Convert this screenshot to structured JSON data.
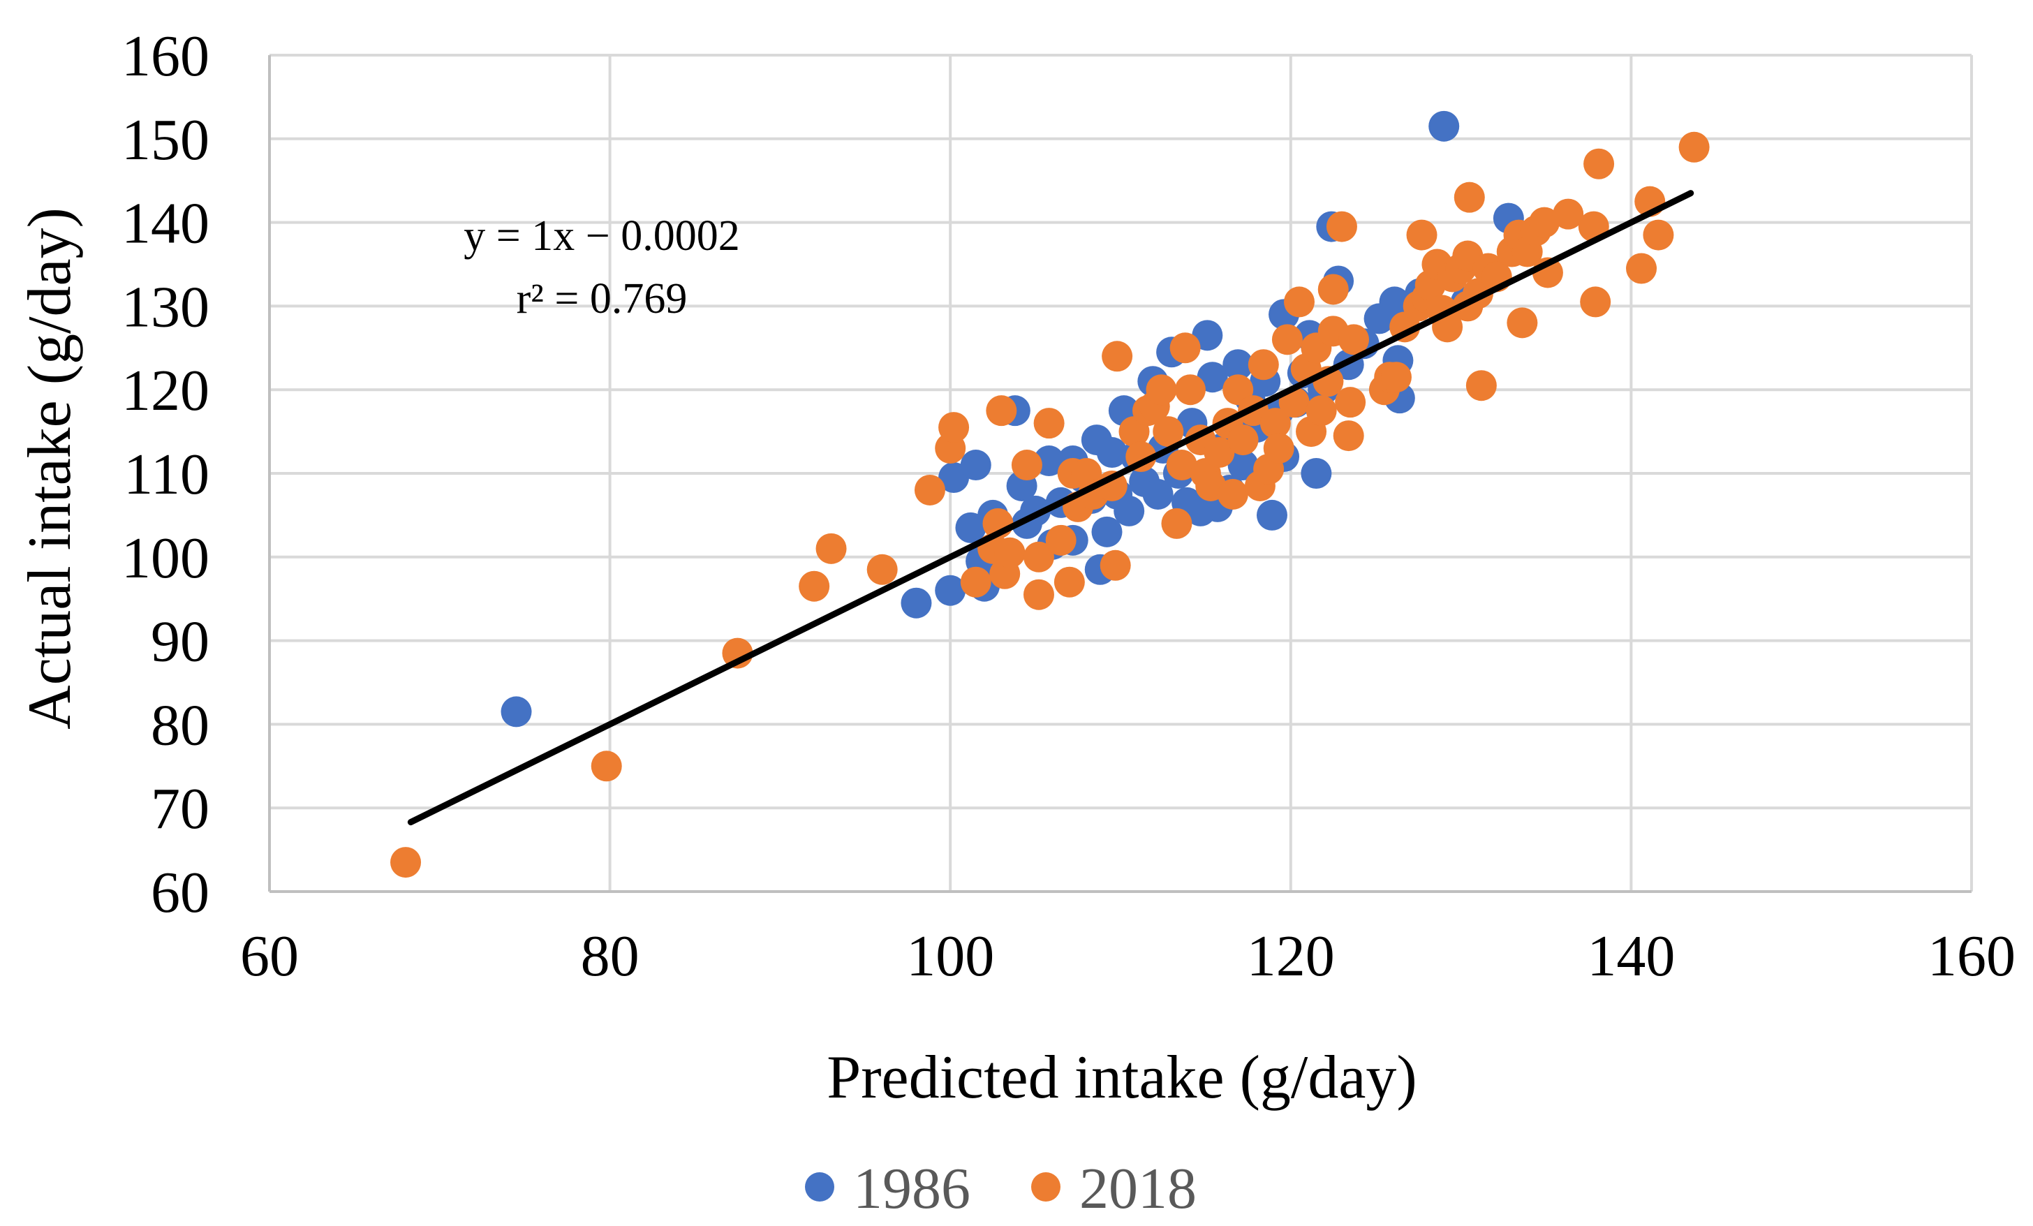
{
  "chart_data": {
    "type": "scatter",
    "title": "",
    "xlabel": "Predicted intake (g/day)",
    "ylabel": "Actual intake (g/day)",
    "xlim": [
      60,
      160
    ],
    "ylim": [
      60,
      160
    ],
    "xticks": [
      60,
      80,
      100,
      120,
      140,
      160
    ],
    "yticks": [
      60,
      70,
      80,
      90,
      100,
      110,
      120,
      130,
      140,
      150,
      160
    ],
    "grid": true,
    "legend_position": "bottom",
    "colors": {
      "s1986": "#4472C4",
      "s2018": "#ED7D31",
      "trend": "#000000"
    },
    "trendline": {
      "equation": "y = 1x − 0.0002",
      "r2_text": "r² = 0.769",
      "x": [
        68.3,
        143.5
      ],
      "y": [
        68.3,
        143.5
      ]
    },
    "series": [
      {
        "name": "1986",
        "color": "#4472C4",
        "points": [
          [
            74.5,
            81.5
          ],
          [
            98,
            94.5
          ],
          [
            100,
            96
          ],
          [
            102,
            96.5
          ],
          [
            100.2,
            109.5
          ],
          [
            101.5,
            111
          ],
          [
            101.2,
            103.5
          ],
          [
            102.5,
            105
          ],
          [
            101.8,
            99.5
          ],
          [
            103.8,
            117.5
          ],
          [
            104.2,
            108.5
          ],
          [
            104.5,
            104
          ],
          [
            105,
            105.5
          ],
          [
            105.8,
            111.5
          ],
          [
            106,
            101.5
          ],
          [
            106.5,
            106.5
          ],
          [
            107.2,
            102
          ],
          [
            107.2,
            111.5
          ],
          [
            107.8,
            109.5
          ],
          [
            108.3,
            107
          ],
          [
            108.6,
            114
          ],
          [
            108.8,
            98.5
          ],
          [
            109.2,
            103
          ],
          [
            109.5,
            112.5
          ],
          [
            109.8,
            107.5
          ],
          [
            110.2,
            117.5
          ],
          [
            110.5,
            105.5
          ],
          [
            110.9,
            112
          ],
          [
            111.4,
            109
          ],
          [
            111.9,
            121
          ],
          [
            112.2,
            107.5
          ],
          [
            112.5,
            113
          ],
          [
            113,
            124.5
          ],
          [
            113.4,
            110
          ],
          [
            113.9,
            106.5
          ],
          [
            114.2,
            116
          ],
          [
            114.7,
            105.5
          ],
          [
            115.1,
            126.5
          ],
          [
            115.4,
            121.5
          ],
          [
            115.7,
            106
          ],
          [
            116,
            113
          ],
          [
            116.4,
            108
          ],
          [
            116.9,
            123
          ],
          [
            117.2,
            111
          ],
          [
            117.6,
            119
          ],
          [
            118,
            115.5
          ],
          [
            118.5,
            121
          ],
          [
            118.9,
            105
          ],
          [
            119.3,
            117.5
          ],
          [
            119.6,
            112
          ],
          [
            119.6,
            129
          ],
          [
            120.3,
            118.5
          ],
          [
            120.7,
            122
          ],
          [
            121.1,
            126.5
          ],
          [
            121.5,
            110
          ],
          [
            121.9,
            120
          ],
          [
            122.4,
            139.5
          ],
          [
            122.8,
            133
          ],
          [
            123.4,
            123
          ],
          [
            124.3,
            125.5
          ],
          [
            125.2,
            128.5
          ],
          [
            126.1,
            130.5
          ],
          [
            126.3,
            123.5
          ],
          [
            126.4,
            119
          ],
          [
            127.6,
            131.5
          ],
          [
            129,
            151.5
          ],
          [
            130.3,
            130.5
          ],
          [
            132.8,
            140.5
          ],
          [
            133.5,
            137
          ]
        ]
      },
      {
        "name": "2018",
        "color": "#ED7D31",
        "points": [
          [
            68,
            63.5
          ],
          [
            79.8,
            75
          ],
          [
            87.5,
            88.5
          ],
          [
            92,
            96.5
          ],
          [
            93,
            101
          ],
          [
            96,
            98.5
          ],
          [
            98.8,
            108
          ],
          [
            100,
            113
          ],
          [
            100.2,
            115.5
          ],
          [
            101.5,
            97
          ],
          [
            102.5,
            101
          ],
          [
            102.8,
            104
          ],
          [
            103,
            117.5
          ],
          [
            103.2,
            98
          ],
          [
            103.5,
            100.5
          ],
          [
            104.5,
            111
          ],
          [
            105.2,
            95.5
          ],
          [
            105.2,
            100
          ],
          [
            105.8,
            116
          ],
          [
            106.5,
            102
          ],
          [
            107,
            97
          ],
          [
            107.2,
            110
          ],
          [
            107.5,
            106
          ],
          [
            108,
            110
          ],
          [
            108.4,
            107.5
          ],
          [
            109.5,
            108.5
          ],
          [
            109.7,
            99
          ],
          [
            109.8,
            124
          ],
          [
            110.8,
            115
          ],
          [
            111.2,
            112
          ],
          [
            111.6,
            117.5
          ],
          [
            112,
            118
          ],
          [
            112.4,
            120
          ],
          [
            112.8,
            115
          ],
          [
            113.3,
            104
          ],
          [
            113.6,
            111
          ],
          [
            113.8,
            125
          ],
          [
            114.1,
            120
          ],
          [
            114.7,
            114
          ],
          [
            115,
            110
          ],
          [
            115.3,
            108.5
          ],
          [
            115.8,
            112.5
          ],
          [
            116.3,
            116
          ],
          [
            116.6,
            107.5
          ],
          [
            116.9,
            120
          ],
          [
            117.2,
            114
          ],
          [
            117.8,
            117.5
          ],
          [
            118.2,
            108.5
          ],
          [
            118.4,
            123
          ],
          [
            118.7,
            110.5
          ],
          [
            119.1,
            116
          ],
          [
            119.3,
            113
          ],
          [
            119.8,
            126
          ],
          [
            120.2,
            118.5
          ],
          [
            120.5,
            130.5
          ],
          [
            120.9,
            122.5
          ],
          [
            121.2,
            115
          ],
          [
            121.5,
            125
          ],
          [
            121.8,
            117.5
          ],
          [
            122.2,
            121
          ],
          [
            122.5,
            127
          ],
          [
            122.5,
            132
          ],
          [
            123,
            139.5
          ],
          [
            123.4,
            114.5
          ],
          [
            123.5,
            118.5
          ],
          [
            123.7,
            126
          ],
          [
            125.5,
            120
          ],
          [
            125.8,
            121.5
          ],
          [
            126.2,
            121.5
          ],
          [
            126.7,
            127.5
          ],
          [
            127.5,
            130
          ],
          [
            127.7,
            138.5
          ],
          [
            128,
            131
          ],
          [
            128.2,
            132.5
          ],
          [
            128.6,
            135
          ],
          [
            128.9,
            129.5
          ],
          [
            129.2,
            127.5
          ],
          [
            129.5,
            133.5
          ],
          [
            130,
            134.5
          ],
          [
            130.4,
            130
          ],
          [
            130.4,
            136
          ],
          [
            130.5,
            143
          ],
          [
            131,
            131.5
          ],
          [
            131.2,
            120.5
          ],
          [
            131.6,
            134.5
          ],
          [
            132.1,
            133.5
          ],
          [
            133,
            136.5
          ],
          [
            133.4,
            138.5
          ],
          [
            133.6,
            128
          ],
          [
            133.9,
            136.5
          ],
          [
            134.4,
            139
          ],
          [
            134.9,
            140
          ],
          [
            135.1,
            134
          ],
          [
            136.3,
            141
          ],
          [
            137.8,
            139.5
          ],
          [
            137.9,
            130.5
          ],
          [
            138.1,
            147
          ],
          [
            140.6,
            134.5
          ],
          [
            141.1,
            142.5
          ],
          [
            141.6,
            138.5
          ],
          [
            143.7,
            149
          ]
        ]
      }
    ]
  }
}
